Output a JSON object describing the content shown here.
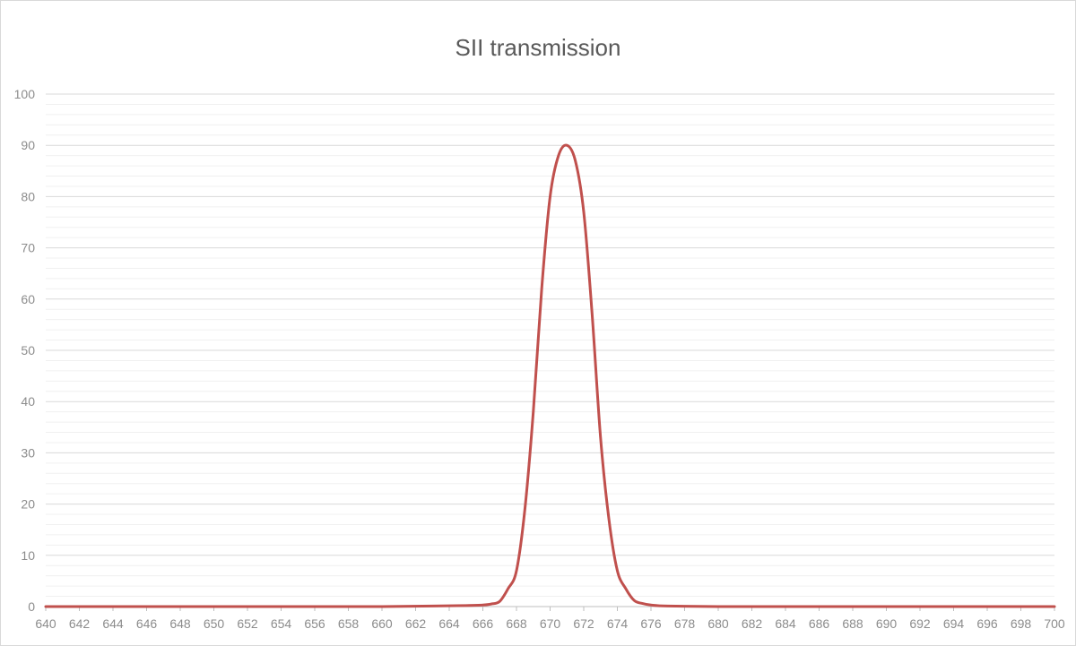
{
  "chart_data": {
    "type": "line",
    "title": "SII transmission",
    "xlabel": "",
    "ylabel": "",
    "xlim": [
      640,
      700
    ],
    "ylim": [
      0,
      100
    ],
    "x_ticks": [
      640,
      642,
      644,
      646,
      648,
      650,
      652,
      654,
      656,
      658,
      660,
      662,
      664,
      666,
      668,
      670,
      672,
      674,
      676,
      678,
      680,
      682,
      684,
      686,
      688,
      690,
      692,
      694,
      696,
      698,
      700
    ],
    "y_ticks": [
      0,
      10,
      20,
      30,
      40,
      50,
      60,
      70,
      80,
      90,
      100
    ],
    "minor_y_step": 2,
    "grid": true,
    "legend": "none",
    "series": [
      {
        "name": "",
        "color": "#c0504d",
        "x": [
          640,
          645,
          650,
          655,
          660,
          663,
          665,
          666,
          666.5,
          667,
          667.5,
          668,
          668.5,
          669,
          669.5,
          670,
          670.5,
          671,
          671.5,
          672,
          672.5,
          673,
          673.5,
          674,
          674.5,
          675,
          675.5,
          676,
          677,
          680,
          685,
          690,
          695,
          700
        ],
        "y": [
          0,
          0,
          0,
          0,
          0,
          0.1,
          0.2,
          0.3,
          0.5,
          1,
          3.5,
          7,
          19,
          38,
          62,
          80,
          88,
          90,
          87,
          77,
          57,
          33,
          17,
          7,
          3.5,
          1.2,
          0.6,
          0.3,
          0.1,
          0,
          0,
          0,
          0,
          0
        ]
      }
    ]
  }
}
